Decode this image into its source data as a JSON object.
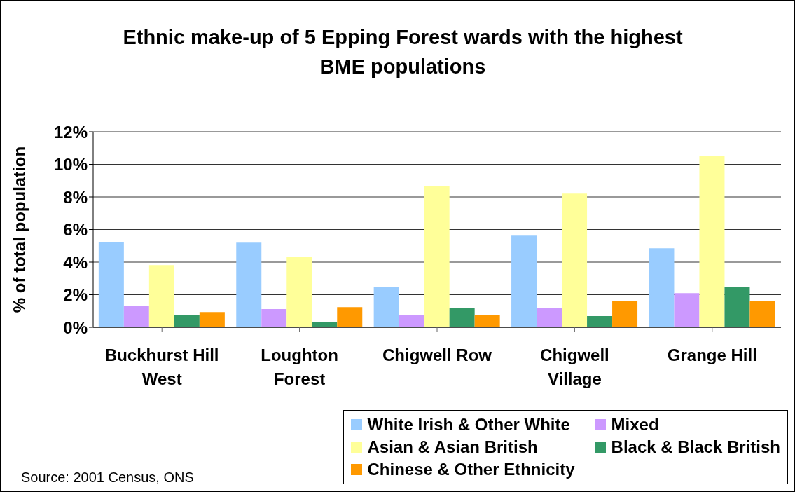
{
  "chart_data": {
    "type": "bar",
    "title": "Ethnic make-up of 5 Epping Forest wards with the highest BME populations",
    "ylabel": "% of total population",
    "categories": [
      "Buckhurst Hill West",
      "Loughton Forest",
      "Chigwell Row",
      "Chigwell Village",
      "Grange Hill"
    ],
    "series": [
      {
        "name": "White Irish & Other White",
        "color": "#99ccff",
        "values": [
          5.24,
          5.19,
          2.49,
          5.62,
          4.85
        ]
      },
      {
        "name": "Mixed",
        "color": "#cc99ff",
        "values": [
          1.33,
          1.12,
          0.73,
          1.2,
          2.1
        ]
      },
      {
        "name": "Asian & Asian British",
        "color": "#ffff99",
        "values": [
          3.82,
          4.33,
          8.67,
          8.2,
          10.52
        ]
      },
      {
        "name": "Black & Black British",
        "color": "#339966",
        "values": [
          0.73,
          0.34,
          1.2,
          0.69,
          2.49
        ]
      },
      {
        "name": "Chinese & Other Ethnicity",
        "color": "#ff9900",
        "values": [
          0.94,
          1.24,
          0.73,
          1.63,
          1.59
        ]
      }
    ],
    "ylim": [
      0,
      12
    ],
    "yticks": [
      {
        "value": 0,
        "label": "0%"
      },
      {
        "value": 2,
        "label": "2%"
      },
      {
        "value": 4,
        "label": "4%"
      },
      {
        "value": 6,
        "label": "6%"
      },
      {
        "value": 8,
        "label": "8%"
      },
      {
        "value": 10,
        "label": "10%"
      },
      {
        "value": 12,
        "label": "12%"
      }
    ],
    "grid": "y",
    "legend": "bottom right",
    "annotations": [
      "Source: 2001 Census, ONS"
    ]
  }
}
